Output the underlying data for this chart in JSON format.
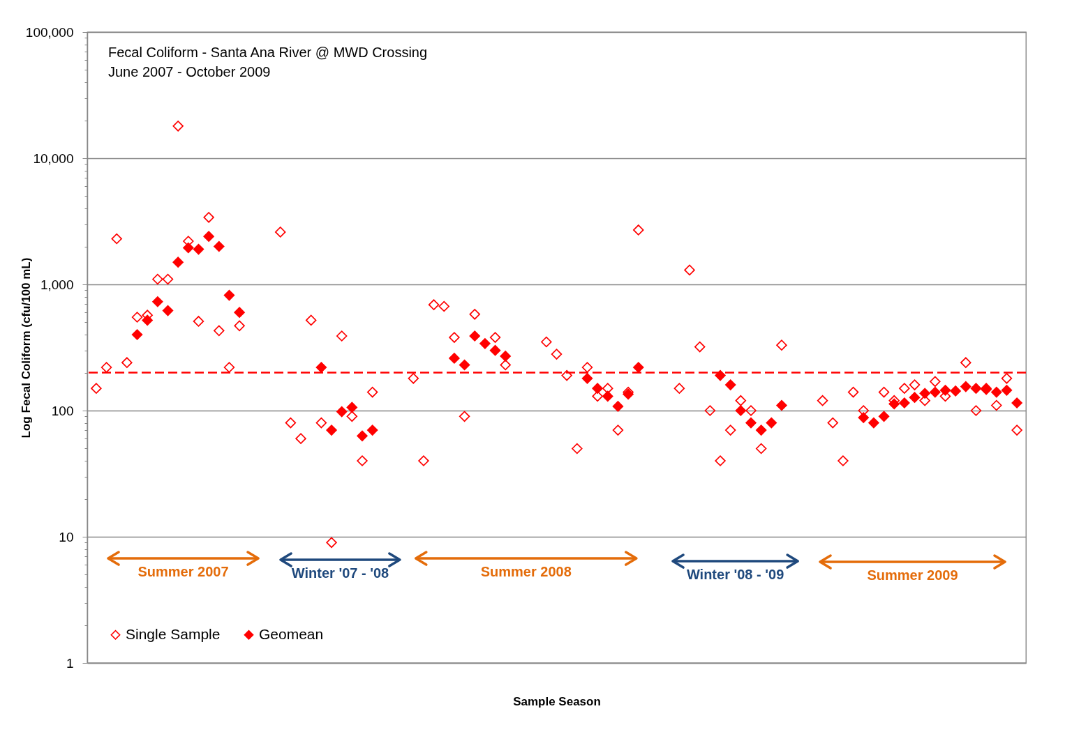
{
  "chart_data": {
    "type": "scatter",
    "title": "Fecal Coliform - Santa Ana River @ MWD Crossing",
    "subtitle": "June 2007 - October 2009",
    "xlabel": "Sample Season",
    "ylabel": "Log Fecal Coliform (cfu/100 mL)",
    "annotations": [
      "Summer 2007",
      "Winter '07 - '08",
      "Summer 2008",
      "Winter '08 - '09",
      "Summer 2009"
    ],
    "categories": [
      null,
      null,
      null,
      null,
      null,
      null,
      null,
      null,
      null,
      null,
      null,
      null,
      null,
      null,
      null,
      null,
      null,
      null,
      null,
      null,
      null,
      null,
      null,
      null,
      null,
      null,
      null,
      null,
      null,
      null,
      null,
      null,
      null,
      null,
      null,
      null,
      null,
      null,
      null,
      null,
      null,
      null,
      null,
      null,
      null,
      null,
      null,
      null,
      null,
      null,
      null,
      null,
      null,
      null,
      null,
      null,
      null,
      null,
      null,
      null,
      null,
      null,
      null,
      null,
      null,
      null,
      null,
      null,
      null,
      null,
      null,
      null,
      null,
      null,
      null,
      null,
      null,
      null,
      null,
      null,
      null,
      null,
      null,
      null,
      null,
      null,
      null,
      null,
      null,
      null,
      null
    ],
    "series": [
      {
        "name": "Single Sample",
        "color": "#ff0000",
        "values": [
          150,
          220,
          2300,
          240,
          550,
          570,
          1100,
          1100,
          18000,
          2200,
          510,
          3400,
          430,
          220,
          470,
          null,
          null,
          null,
          2600,
          80,
          60,
          520,
          80,
          9,
          390,
          90,
          40,
          140,
          null,
          null,
          null,
          180,
          40,
          690,
          670,
          380,
          90,
          580,
          null,
          380,
          230,
          null,
          null,
          null,
          350,
          280,
          190,
          50,
          220,
          130,
          150,
          70,
          140,
          2700,
          null,
          null,
          null,
          150,
          1300,
          320,
          100,
          40,
          70,
          120,
          100,
          50,
          null,
          330,
          null,
          null,
          null,
          120,
          80,
          40,
          140,
          100,
          null,
          140,
          120,
          150,
          160,
          120,
          170,
          130,
          null,
          240,
          100,
          150,
          110,
          180,
          70
        ]
      },
      {
        "name": "Geomean",
        "color": "#ff0000",
        "values": [
          null,
          null,
          null,
          null,
          400,
          520,
          730,
          620,
          1500,
          1950,
          1900,
          2400,
          2000,
          820,
          600,
          null,
          null,
          null,
          null,
          null,
          null,
          null,
          220,
          70,
          98,
          106,
          63,
          70,
          null,
          null,
          null,
          null,
          null,
          null,
          null,
          260,
          230,
          390,
          340,
          300,
          270,
          null,
          null,
          null,
          null,
          null,
          null,
          null,
          180,
          150,
          130,
          108,
          135,
          220,
          null,
          null,
          null,
          null,
          null,
          null,
          null,
          190,
          160,
          100,
          80,
          70,
          80,
          110,
          null,
          null,
          null,
          null,
          null,
          null,
          null,
          88,
          80,
          90,
          113,
          115,
          127,
          137,
          140,
          145,
          143,
          155,
          150,
          147,
          140,
          145,
          115
        ]
      }
    ],
    "log": "y",
    "ylim": [
      1,
      100000
    ],
    "yticks": [
      1,
      {
        "value": 2,
        "label": null
      },
      {
        "value": 3,
        "label": null
      },
      {
        "value": 4,
        "label": null
      },
      {
        "value": 5,
        "label": null
      },
      {
        "value": 6,
        "label": null
      },
      {
        "value": 7,
        "label": null
      },
      {
        "value": 8,
        "label": null
      },
      {
        "value": 9,
        "label": null
      },
      10,
      {
        "value": 20,
        "label": null
      },
      {
        "value": 30,
        "label": null
      },
      {
        "value": 40,
        "label": null
      },
      {
        "value": 50,
        "label": null
      },
      {
        "value": 60,
        "label": null
      },
      {
        "value": 70,
        "label": null
      },
      {
        "value": 80,
        "label": null
      },
      {
        "value": 90,
        "label": null
      },
      100,
      {
        "value": 200,
        "label": null
      },
      {
        "value": 300,
        "label": null
      },
      {
        "value": 400,
        "label": null
      },
      {
        "value": 500,
        "label": null
      },
      {
        "value": 600,
        "label": null
      },
      {
        "value": 700,
        "label": null
      },
      {
        "value": 800,
        "label": null
      },
      {
        "value": 900,
        "label": null
      },
      {
        "value": 1000,
        "label": "1,000"
      },
      {
        "value": 2000,
        "label": null
      },
      {
        "value": 3000,
        "label": null
      },
      {
        "value": 4000,
        "label": null
      },
      {
        "value": 5000,
        "label": null
      },
      {
        "value": 6000,
        "label": null
      },
      {
        "value": 7000,
        "label": null
      },
      {
        "value": 8000,
        "label": null
      },
      {
        "value": 9000,
        "label": null
      },
      {
        "value": 10000,
        "label": "10,000"
      },
      {
        "value": 20000,
        "label": null
      },
      {
        "value": 30000,
        "label": null
      },
      {
        "value": 40000,
        "label": null
      },
      {
        "value": 50000,
        "label": null
      },
      {
        "value": 60000,
        "label": null
      },
      {
        "value": 70000,
        "label": null
      },
      {
        "value": 80000,
        "label": null
      },
      {
        "value": 90000,
        "label": null
      },
      {
        "value": 100000,
        "label": "100,000"
      }
    ],
    "ref_lines": [
      {
        "axis": "y",
        "value": 200,
        "color": "#ff0000",
        "line_style": "dashed"
      }
    ],
    "grid": "y",
    "legend": "bottom left",
    "marker": "diamond"
  }
}
